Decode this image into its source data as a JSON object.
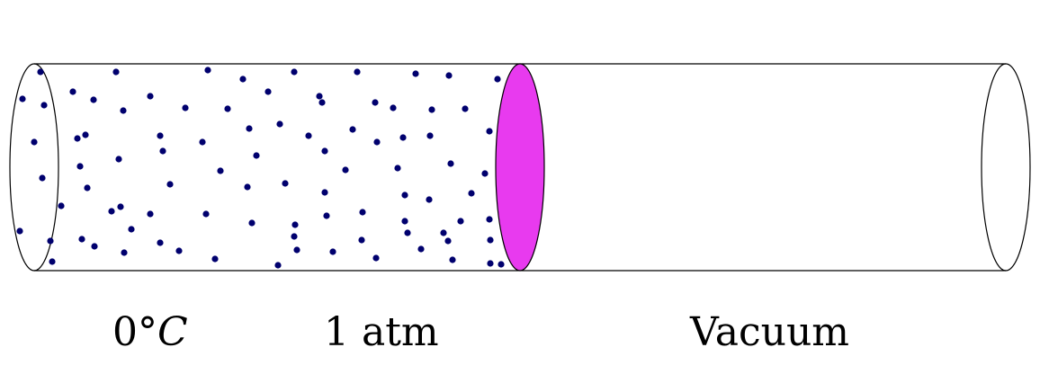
{
  "labels": {
    "temperature_number": "0",
    "temperature_degree": "°",
    "temperature_unit": "C",
    "pressure": "1 atm",
    "vacuum": "Vacuum"
  },
  "colors": {
    "outline": "#000000",
    "piston": "#e83aef",
    "molecule": "#00006e",
    "background": "#ffffff"
  },
  "molecule_count": 118
}
